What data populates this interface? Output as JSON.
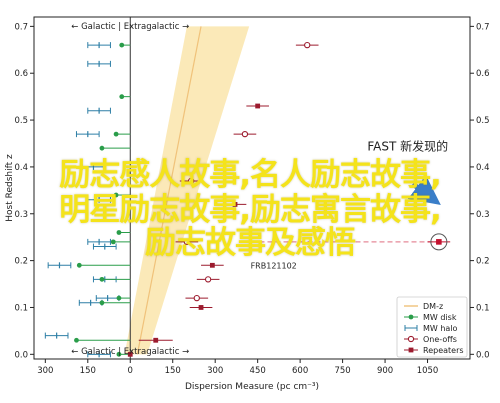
{
  "chart_data": {
    "type": "scatter",
    "xlabel": "Dispersion Measure (pc cm⁻³)",
    "ylabel": "Host Redshift z",
    "xlim": [
      -340,
      1200
    ],
    "ylim": [
      -0.01,
      0.72
    ],
    "x_ticks": [
      -300,
      -150,
      0,
      150,
      300,
      450,
      600,
      750,
      900,
      1050
    ],
    "x_tick_labels": [
      "300",
      "150",
      "0",
      "150",
      "300",
      "450",
      "600",
      "750",
      "900",
      "1050"
    ],
    "y_ticks": [
      0.0,
      0.1,
      0.2,
      0.3,
      0.4,
      0.5,
      0.6,
      0.7
    ],
    "y_tick_labels": [
      "0.0",
      "0.1",
      "0.2",
      "0.3",
      "0.4",
      "0.5",
      "0.6",
      "0.7"
    ],
    "top_label": "← Galactic | Extragalactic →",
    "bottom_label": "← Galactic | Extragalactic →",
    "legend_position": "bottom-right",
    "legend": [
      {
        "key": "dmz",
        "label": "DM-z"
      },
      {
        "key": "mw_disk",
        "label": "MW disk"
      },
      {
        "key": "mw_halo",
        "label": "MW halo"
      },
      {
        "key": "one_offs",
        "label": "One-offs"
      },
      {
        "key": "repeaters",
        "label": "Repeaters"
      }
    ],
    "colors": {
      "dmz_band": "#fbe9b8",
      "dmz_line": "#f0c27a",
      "mw_disk": "#2a9d4a",
      "mw_halo": "#2e7fa6",
      "frb": "#9c1b2e",
      "fast_marker": "#c3122f",
      "fast_text": "#e8141e",
      "arrow": "#3a7ec8"
    },
    "dmz_line": [
      [
        25,
        0.0
      ],
      [
        250,
        0.7
      ]
    ],
    "dmz_band": [
      [
        60,
        0.0
      ],
      [
        -20,
        0.0
      ],
      [
        200,
        0.7
      ],
      [
        420,
        0.7
      ]
    ],
    "mw_disk": [
      {
        "x": -30,
        "y": 0.66,
        "err": 0
      },
      {
        "x": -30,
        "y": 0.55,
        "err": 0
      },
      {
        "x": -50,
        "y": 0.47,
        "err": 0
      },
      {
        "x": -100,
        "y": 0.44,
        "err": 0
      },
      {
        "x": -50,
        "y": 0.34,
        "err": 0
      },
      {
        "x": -40,
        "y": 0.26,
        "err": 0
      },
      {
        "x": -60,
        "y": 0.24,
        "err": 0
      },
      {
        "x": -180,
        "y": 0.19,
        "err": 0
      },
      {
        "x": -100,
        "y": 0.16,
        "err": 0
      },
      {
        "x": -40,
        "y": 0.12,
        "err": 0
      },
      {
        "x": -100,
        "y": 0.11,
        "err": 0
      },
      {
        "x": -190,
        "y": 0.03,
        "err": 0
      },
      {
        "x": -40,
        "y": 0.0,
        "err": 0
      }
    ],
    "mw_halo": [
      {
        "x": -110,
        "y": 0.66,
        "err": 40
      },
      {
        "x": -110,
        "y": 0.62,
        "err": 40
      },
      {
        "x": -110,
        "y": 0.52,
        "err": 40
      },
      {
        "x": -150,
        "y": 0.47,
        "err": 40
      },
      {
        "x": -130,
        "y": 0.4,
        "err": 40
      },
      {
        "x": -110,
        "y": 0.33,
        "err": 40
      },
      {
        "x": -110,
        "y": 0.24,
        "err": 40
      },
      {
        "x": -90,
        "y": 0.23,
        "err": 40
      },
      {
        "x": -250,
        "y": 0.19,
        "err": 40
      },
      {
        "x": -90,
        "y": 0.16,
        "err": 40
      },
      {
        "x": -80,
        "y": 0.12,
        "err": 40
      },
      {
        "x": -140,
        "y": 0.11,
        "err": 40
      },
      {
        "x": -260,
        "y": 0.04,
        "err": 40
      },
      {
        "x": -110,
        "y": 0.0,
        "err": 40
      }
    ],
    "one_offs": [
      {
        "x": 625,
        "y": 0.66,
        "err": 40
      },
      {
        "x": 405,
        "y": 0.47,
        "err": 40
      },
      {
        "x": 215,
        "y": 0.37,
        "err": 40
      },
      {
        "x": 200,
        "y": 0.24,
        "err": 40
      },
      {
        "x": 275,
        "y": 0.16,
        "err": 40
      },
      {
        "x": 235,
        "y": 0.12,
        "err": 40
      }
    ],
    "repeaters": [
      {
        "x": 450,
        "y": 0.53,
        "err": 40
      },
      {
        "x": 370,
        "y": 0.32,
        "err": 40
      },
      {
        "x": 290,
        "y": 0.19,
        "err": 40
      },
      {
        "x": 250,
        "y": 0.1,
        "err": 40
      },
      {
        "x": 90,
        "y": 0.03,
        "err": 60
      },
      {
        "x": 0,
        "y": 0.0,
        "err": 0
      }
    ],
    "frb_label": {
      "text": "FRB121102",
      "x": 425,
      "y": 0.19
    },
    "fast_point": {
      "x": 1090,
      "y": 0.24,
      "err": 40
    },
    "fast_ref_line_from_x": 400,
    "fast_annotation": {
      "text": "FAST 新发现的",
      "x": 980,
      "y": 0.435
    },
    "overlay_text": [
      "励志感人故事,名人励志故事,",
      "明星励志故事,励志寓言故事,",
      "励志故事及感悟"
    ]
  }
}
